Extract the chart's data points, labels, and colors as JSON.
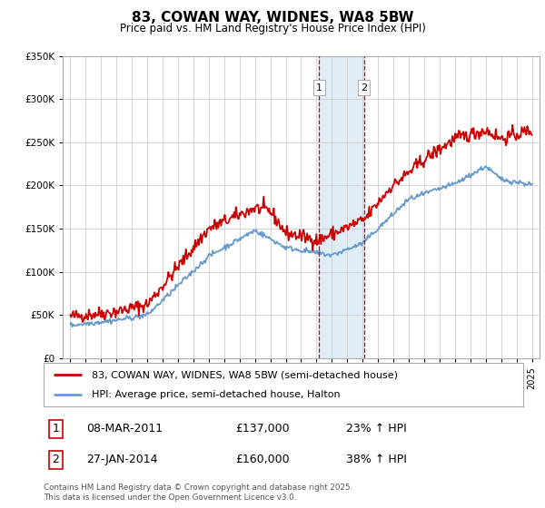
{
  "title": "83, COWAN WAY, WIDNES, WA8 5BW",
  "subtitle": "Price paid vs. HM Land Registry's House Price Index (HPI)",
  "red_label": "83, COWAN WAY, WIDNES, WA8 5BW (semi-detached house)",
  "blue_label": "HPI: Average price, semi-detached house, Halton",
  "vline1_x": 2011.18,
  "vline2_x": 2014.08,
  "vline1_label": "1",
  "vline2_label": "2",
  "annotation1": [
    "1",
    "08-MAR-2011",
    "£137,000",
    "23% ↑ HPI"
  ],
  "annotation2": [
    "2",
    "27-JAN-2014",
    "£160,000",
    "38% ↑ HPI"
  ],
  "footer": "Contains HM Land Registry data © Crown copyright and database right 2025.\nThis data is licensed under the Open Government Licence v3.0.",
  "ylim": [
    0,
    350000
  ],
  "yticks": [
    0,
    50000,
    100000,
    150000,
    200000,
    250000,
    300000,
    350000
  ],
  "xlim": [
    1994.5,
    2025.5
  ],
  "red_color": "#cc0000",
  "blue_color": "#6699cc",
  "vline_color": "#cc0000",
  "shade_color": "#cce0f0",
  "bg_color": "#ffffff",
  "grid_color": "#cccccc"
}
